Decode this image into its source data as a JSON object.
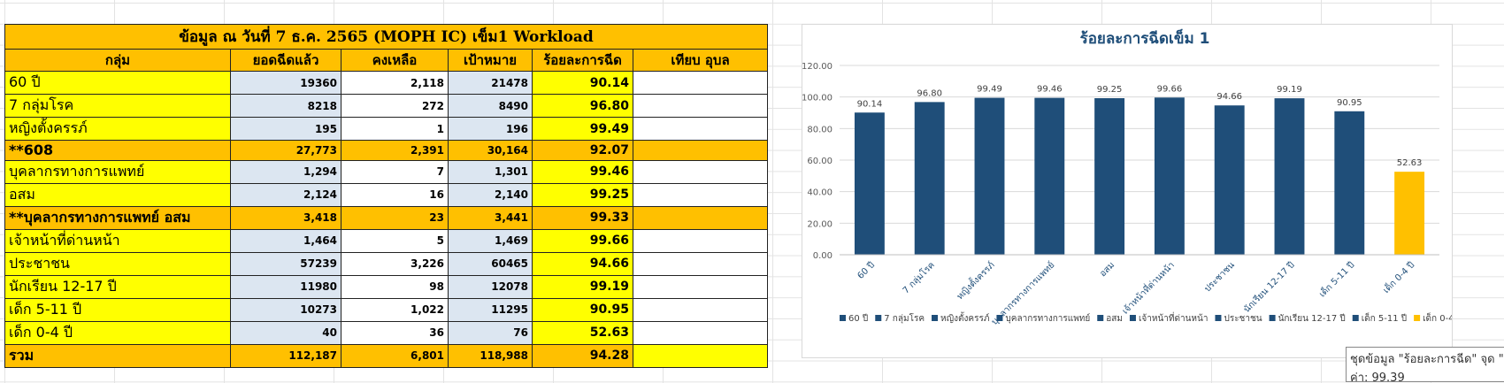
{
  "table": {
    "title": "ข้อมูล ณ วันที่ 7 ธ.ค. 2565 (MOPH IC) เข็ม1 Workload",
    "headers": [
      "กลุ่ม",
      "ยอดฉีดแล้ว",
      "คงเหลือ",
      "เป้าหมาย",
      "ร้อยละการฉีด",
      "เทียบ อุบล"
    ],
    "rows": [
      [
        "60 ปี",
        "19360",
        "2,118",
        "21478",
        "90.14"
      ],
      [
        "7 กลุ่มโรค",
        "8218",
        "272",
        "8490",
        "96.80"
      ],
      [
        "หญิงตั้งครรภ์",
        "195",
        "1",
        "196",
        "99.49"
      ],
      [
        "**608",
        "27,773",
        "2,391",
        "30,164",
        "92.07"
      ],
      [
        "บุคลากรทางการแพทย์",
        "1,294",
        "7",
        "1,301",
        "99.46"
      ],
      [
        "อสม",
        "2,124",
        "16",
        "2,140",
        "99.25"
      ],
      [
        "**บุคลากรทางการแพทย์ อสม",
        "3,418",
        "23",
        "3,441",
        "99.33"
      ],
      [
        "เจ้าหน้าที่ด่านหน้า",
        "1,464",
        "5",
        "1,469",
        "99.66"
      ],
      [
        "ประชาชน",
        "57239",
        "3,226",
        "60465",
        "94.66"
      ],
      [
        "นักเรียน 12-17 ปี",
        "11980",
        "98",
        "12078",
        "99.19"
      ],
      [
        "เด็ก 5-11 ปี",
        "10273",
        "1,022",
        "11295",
        "90.95"
      ],
      [
        "เด็ก 0-4 ปี",
        "40",
        "36",
        "76",
        "52.63"
      ],
      [
        "รวม",
        "112,187",
        "6,801",
        "118,988",
        "94.28"
      ]
    ]
  },
  "chart_data": {
    "type": "bar",
    "title": "ร้อยละการฉีดเข็ม 1",
    "categories": [
      "60 ปี",
      "7 กลุ่มโรค",
      "หญิงตั้งครรภ์",
      "บุคลากรทางการแพทย์",
      "อสม",
      "เจ้าหน้าที่ด่านหน้า",
      "ประชาชน",
      "นักเรียน 12-17 ปี",
      "เด็ก 5-11 ปี",
      "เด็ก 0-4 ปี"
    ],
    "values": [
      90.14,
      96.8,
      99.49,
      99.46,
      99.25,
      99.66,
      94.66,
      99.19,
      90.95,
      52.63
    ],
    "value_labels": [
      "90.14",
      "96.80",
      "99.49",
      "99.46",
      "99.25",
      "99.66",
      "94.66",
      "99.19",
      "90.95",
      "52.63"
    ],
    "colors": [
      "#1f4e79",
      "#1f4e79",
      "#1f4e79",
      "#1f4e79",
      "#1f4e79",
      "#1f4e79",
      "#1f4e79",
      "#1f4e79",
      "#1f4e79",
      "#ffc000"
    ],
    "ylim": [
      0,
      120
    ],
    "yticks": [
      {
        "value": 0,
        "label": "0.00"
      },
      {
        "value": 20,
        "label": "20.00"
      },
      {
        "value": 40,
        "label": "40.00"
      },
      {
        "value": 60,
        "label": "60.00"
      },
      {
        "value": 80,
        "label": "80.00"
      },
      {
        "value": 100,
        "label": "100.00"
      },
      {
        "value": 120,
        "label": "120.00"
      }
    ],
    "grid": true,
    "legend": "bottom"
  },
  "tooltip": {
    "line1": "ชุดข้อมูล \"ร้อยละการฉีด\" จุด \"",
    "line2": "ค่า: 99.39"
  }
}
